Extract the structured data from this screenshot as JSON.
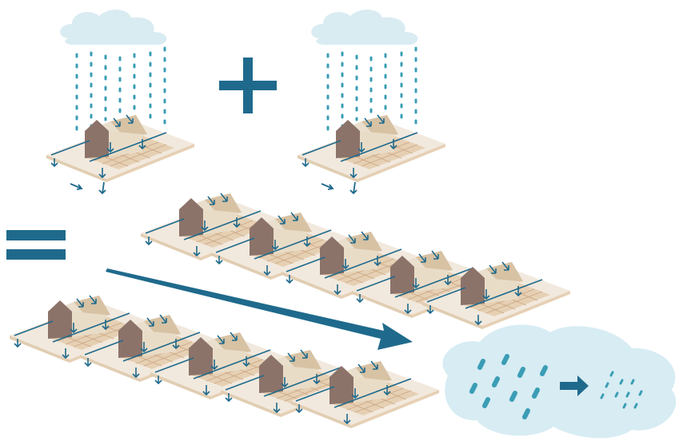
{
  "diagram": {
    "description_free": true,
    "colors": {
      "cloud": "#d9ecf2",
      "rain": "#3a9db5",
      "accent": "#1f6a8c",
      "lot": "#f2e9de",
      "lot_edge": "#e1cdb2",
      "paving": "#e6d0b4",
      "paving_line": "#caa783",
      "house_wall": "#8c736a",
      "house_roof": "#eadfcd",
      "house_roof_dark": "#d7c2a4",
      "puddle": "#d7ecf3",
      "white": "#ffffff"
    },
    "icons": [
      "cloud-icon",
      "rain-icon",
      "house-icon",
      "runoff-arrow-icon",
      "plus-sign-icon",
      "equals-sign-icon",
      "big-arrow-icon",
      "puddle-icon",
      "small-arrow-icon"
    ]
  }
}
